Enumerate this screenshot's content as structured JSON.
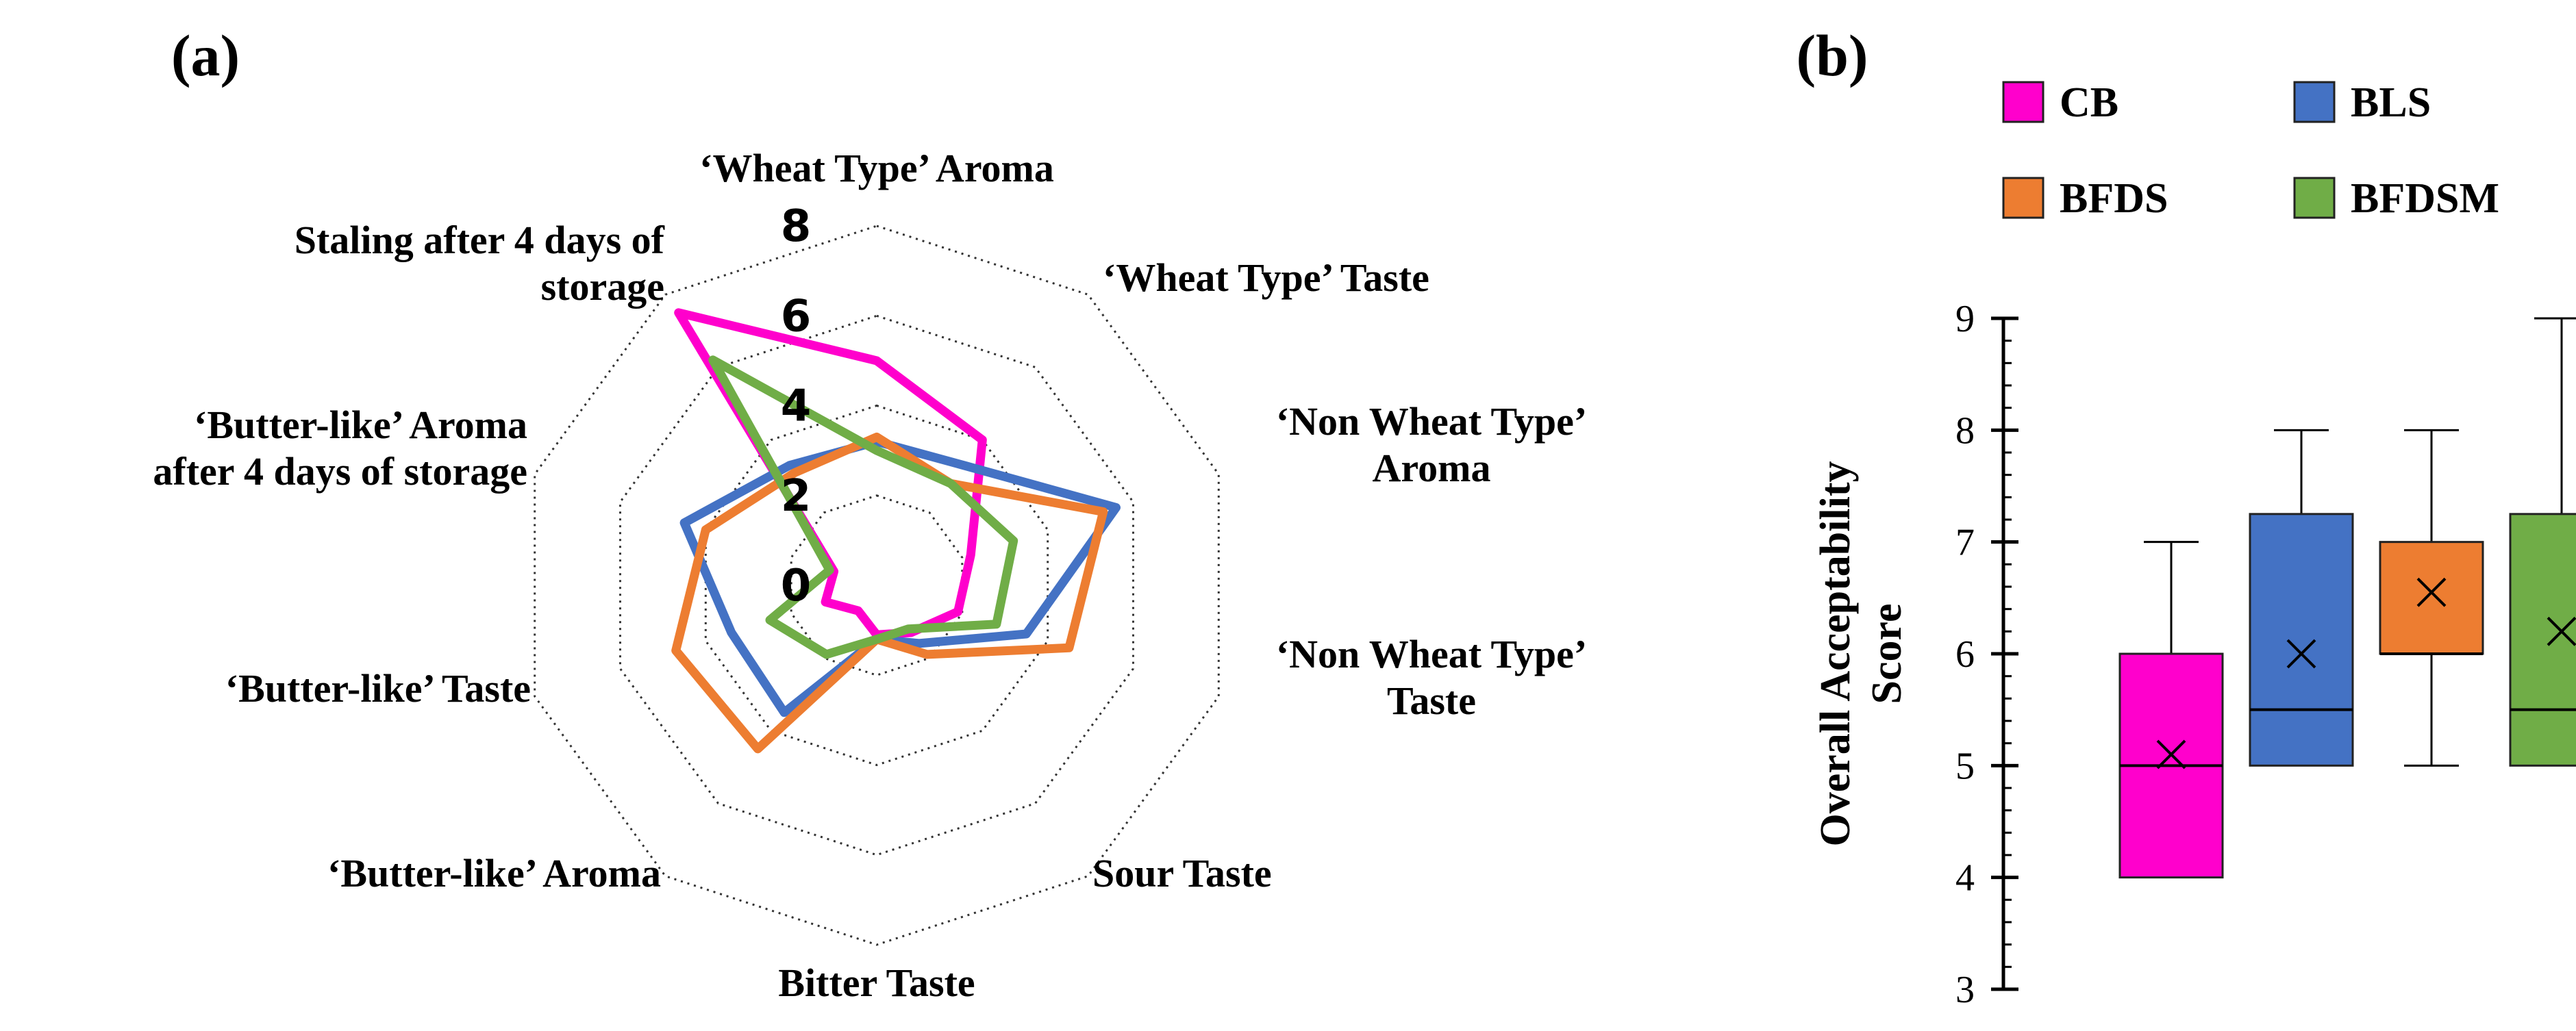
{
  "panels": {
    "a_label": "(a)",
    "b_label": "(b)"
  },
  "chart_data": [
    {
      "type": "radar",
      "axes": [
        [
          "‘Wheat Type’ Aroma"
        ],
        [
          "‘Wheat Type’ Taste"
        ],
        [
          "‘Non Wheat Type’",
          "Aroma"
        ],
        [
          "‘Non Wheat Type’",
          "Taste"
        ],
        [
          "Sour Taste"
        ],
        [
          "Bitter Taste"
        ],
        [
          "‘Butter-like’  Aroma"
        ],
        [
          "‘Butter-like’  Taste"
        ],
        [
          "‘Butter-like’   Aroma",
          "after 4 days of storage"
        ],
        [
          "Staling after 4 days of",
          "storage"
        ]
      ],
      "ticks": [
        "0",
        "2",
        "4",
        "6",
        "8"
      ],
      "range": [
        0,
        8
      ],
      "grid": "dotted",
      "series": [
        {
          "name": "CB",
          "color": "#ff00cc",
          "values": [
            5.0,
            4.0,
            2.2,
            1.9,
            1.3,
            1.1,
            0.7,
            1.2,
            1.0,
            7.5
          ]
        },
        {
          "name": "BLS",
          "color": "#4472c4",
          "values": [
            3.2,
            3.3,
            5.6,
            3.5,
            1.6,
            1.2,
            3.5,
            3.4,
            4.5,
            3.3
          ]
        },
        {
          "name": "BFDS",
          "color": "#ed7d31",
          "values": [
            3.3,
            2.8,
            5.3,
            4.5,
            1.9,
            1.2,
            4.5,
            4.7,
            4.0,
            3.1
          ]
        },
        {
          "name": "BFDSM",
          "color": "#70ad47",
          "values": [
            3.0,
            2.8,
            3.2,
            2.8,
            1.2,
            1.2,
            1.9,
            2.5,
            1.1,
            6.2
          ]
        }
      ]
    },
    {
      "type": "box",
      "ylabel": [
        "Overall Acceptability",
        "Score"
      ],
      "ylim": [
        3,
        9
      ],
      "yticks": [
        "3",
        "4",
        "5",
        "6",
        "7",
        "8",
        "9"
      ],
      "legend_position": "top",
      "series": [
        {
          "name": "CB",
          "color": "#ff00cc",
          "min": 4,
          "q1": 4,
          "median": 5,
          "q3": 6,
          "max": 7,
          "mean": 5.1
        },
        {
          "name": "BLS",
          "color": "#4472c4",
          "min": 5,
          "q1": 5,
          "median": 5.5,
          "q3": 7.25,
          "max": 8,
          "mean": 6.0
        },
        {
          "name": "BFDS",
          "color": "#ed7d31",
          "min": 5,
          "q1": 6,
          "median": 6,
          "q3": 7,
          "max": 8,
          "mean": 6.55
        },
        {
          "name": "BFDSM",
          "color": "#70ad47",
          "min": 5,
          "q1": 5,
          "median": 5.5,
          "q3": 7.25,
          "max": 9,
          "mean": 6.2
        }
      ]
    }
  ]
}
